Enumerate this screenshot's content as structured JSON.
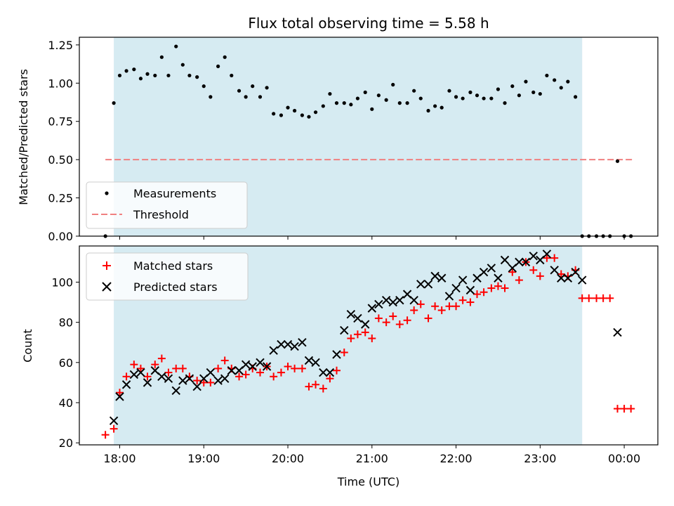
{
  "chart_data": [
    {
      "type": "scatter",
      "title": "Flux total observing time = 5.58 h",
      "ylabel": "Matched/Predicted stars",
      "ylim": [
        0,
        1.3
      ],
      "yticks": [
        0,
        0.25,
        0.5,
        0.75,
        1.0,
        1.25
      ],
      "ytick_labels": [
        "0.00",
        "0.25",
        "0.50",
        "0.75",
        "1.00",
        "1.25"
      ],
      "observing_window": [
        17.93,
        23.5
      ],
      "threshold": {
        "name": "Threshold",
        "value": 0.5,
        "x_range": [
          17.83,
          24.1
        ],
        "color": "#f08080"
      },
      "legend": [
        "Measurements",
        "Threshold"
      ],
      "legend_location": "lower-left",
      "series": [
        {
          "name": "Measurements",
          "color": "#000000",
          "x": [
            17.83,
            17.93,
            18.0,
            18.08,
            18.17,
            18.25,
            18.33,
            18.42,
            18.5,
            18.58,
            18.67,
            18.75,
            18.83,
            18.92,
            19.0,
            19.08,
            19.17,
            19.25,
            19.33,
            19.42,
            19.5,
            19.58,
            19.67,
            19.75,
            19.83,
            19.92,
            20.0,
            20.08,
            20.17,
            20.25,
            20.33,
            20.42,
            20.5,
            20.58,
            20.67,
            20.75,
            20.83,
            20.92,
            21.0,
            21.08,
            21.17,
            21.25,
            21.33,
            21.42,
            21.5,
            21.58,
            21.67,
            21.75,
            21.83,
            21.92,
            22.0,
            22.08,
            22.17,
            22.25,
            22.33,
            22.42,
            22.5,
            22.58,
            22.67,
            22.75,
            22.83,
            22.92,
            23.0,
            23.08,
            23.17,
            23.25,
            23.33,
            23.42,
            23.5,
            23.58,
            23.67,
            23.75,
            23.83,
            23.92,
            24.0,
            24.08
          ],
          "y": [
            0.0,
            0.87,
            1.05,
            1.08,
            1.09,
            1.03,
            1.06,
            1.05,
            1.17,
            1.05,
            1.24,
            1.12,
            1.05,
            1.04,
            0.98,
            0.91,
            1.11,
            1.17,
            1.05,
            0.95,
            0.91,
            0.98,
            0.91,
            0.97,
            0.8,
            0.79,
            0.84,
            0.82,
            0.79,
            0.78,
            0.81,
            0.85,
            0.93,
            0.87,
            0.87,
            0.86,
            0.9,
            0.94,
            0.83,
            0.92,
            0.89,
            0.99,
            0.87,
            0.87,
            0.95,
            0.9,
            0.82,
            0.85,
            0.84,
            0.95,
            0.91,
            0.9,
            0.94,
            0.92,
            0.9,
            0.9,
            0.96,
            0.87,
            0.98,
            0.92,
            1.01,
            0.94,
            0.93,
            1.05,
            1.02,
            0.97,
            1.01,
            0.91,
            0.0,
            0.0,
            0.0,
            0.0,
            0.0,
            0.49,
            0.0,
            0.0
          ]
        }
      ]
    },
    {
      "type": "scatter",
      "xlabel": "Time (UTC)",
      "ylabel": "Count",
      "xlim": [
        17.52,
        24.4
      ],
      "ylim": [
        19,
        118
      ],
      "xticks": [
        18,
        19,
        20,
        21,
        22,
        23,
        24
      ],
      "xtick_labels": [
        "18:00",
        "19:00",
        "20:00",
        "21:00",
        "22:00",
        "23:00",
        "00:00"
      ],
      "yticks": [
        20,
        40,
        60,
        80,
        100
      ],
      "ytick_labels": [
        "20",
        "40",
        "60",
        "80",
        "100"
      ],
      "observing_window": [
        17.93,
        23.5
      ],
      "legend": [
        "Matched stars",
        "Predicted stars"
      ],
      "legend_location": "upper-left",
      "series": [
        {
          "name": "Matched stars",
          "marker": "plus",
          "color": "#ff0000",
          "x": [
            17.83,
            17.93,
            18.0,
            18.08,
            18.17,
            18.25,
            18.33,
            18.42,
            18.5,
            18.58,
            18.67,
            18.75,
            18.83,
            18.92,
            19.0,
            19.08,
            19.17,
            19.25,
            19.33,
            19.42,
            19.5,
            19.58,
            19.67,
            19.75,
            19.83,
            19.92,
            20.0,
            20.08,
            20.17,
            20.25,
            20.33,
            20.42,
            20.5,
            20.58,
            20.67,
            20.75,
            20.83,
            20.92,
            21.0,
            21.08,
            21.17,
            21.25,
            21.33,
            21.42,
            21.5,
            21.58,
            21.67,
            21.75,
            21.83,
            21.92,
            22.0,
            22.08,
            22.17,
            22.25,
            22.33,
            22.42,
            22.5,
            22.58,
            22.67,
            22.75,
            22.83,
            22.92,
            23.0,
            23.08,
            23.17,
            23.25,
            23.33,
            23.42,
            23.5,
            23.58,
            23.67,
            23.75,
            23.83,
            23.92,
            24.0,
            24.08
          ],
          "y": [
            24,
            27,
            45,
            53,
            59,
            57,
            53,
            59,
            62,
            55,
            57,
            57,
            53,
            51,
            50,
            50,
            57,
            61,
            57,
            53,
            54,
            57,
            55,
            58,
            53,
            55,
            58,
            57,
            57,
            48,
            49,
            47,
            52,
            56,
            65,
            72,
            74,
            75,
            72,
            82,
            80,
            83,
            79,
            81,
            86,
            89,
            82,
            88,
            86,
            88,
            88,
            91,
            90,
            94,
            95,
            97,
            98,
            97,
            105,
            101,
            110,
            106,
            103,
            112,
            112,
            104,
            103,
            106,
            92,
            92,
            92,
            92,
            92,
            37,
            37,
            37
          ]
        },
        {
          "name": "Predicted stars",
          "marker": "x",
          "color": "#000000",
          "x": [
            17.93,
            18.0,
            18.08,
            18.17,
            18.25,
            18.33,
            18.42,
            18.5,
            18.58,
            18.67,
            18.75,
            18.83,
            18.92,
            19.0,
            19.08,
            19.17,
            19.25,
            19.33,
            19.42,
            19.5,
            19.58,
            19.67,
            19.75,
            19.83,
            19.92,
            20.0,
            20.08,
            20.17,
            20.25,
            20.33,
            20.42,
            20.5,
            20.58,
            20.67,
            20.75,
            20.83,
            20.92,
            21.0,
            21.08,
            21.17,
            21.25,
            21.33,
            21.42,
            21.5,
            21.58,
            21.67,
            21.75,
            21.83,
            21.92,
            22.0,
            22.08,
            22.17,
            22.25,
            22.33,
            22.42,
            22.5,
            22.58,
            22.67,
            22.75,
            22.83,
            22.92,
            23.0,
            23.08,
            23.17,
            23.25,
            23.33,
            23.42,
            23.5,
            23.92
          ],
          "y": [
            31,
            43,
            49,
            54,
            55,
            50,
            56,
            53,
            52,
            46,
            51,
            52,
            48,
            52,
            55,
            51,
            52,
            56,
            56,
            59,
            58,
            60,
            58,
            66,
            69,
            69,
            68,
            70,
            61,
            60,
            55,
            55,
            64,
            76,
            84,
            82,
            79,
            87,
            89,
            91,
            90,
            91,
            94,
            91,
            99,
            99,
            103,
            102,
            93,
            97,
            101,
            96,
            102,
            105,
            107,
            102,
            111,
            107,
            110,
            110,
            113,
            111,
            114,
            106,
            102,
            102,
            105,
            101,
            75
          ]
        }
      ]
    }
  ]
}
